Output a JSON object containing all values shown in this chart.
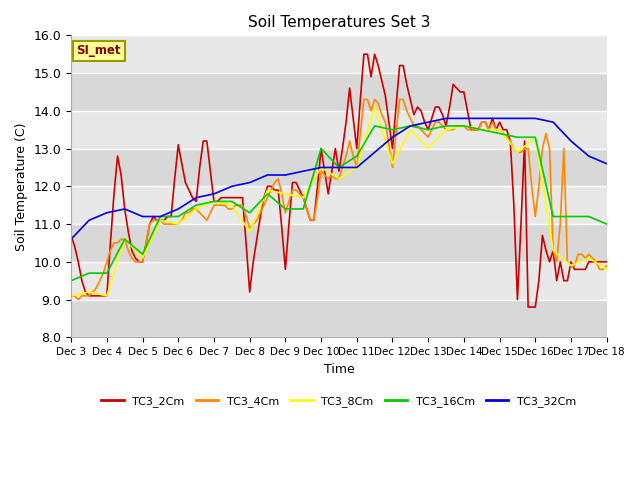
{
  "title": "Soil Temperatures Set 3",
  "xlabel": "Time",
  "ylabel": "Soil Temperature (C)",
  "ylim": [
    8.0,
    16.0
  ],
  "yticks": [
    8.0,
    9.0,
    10.0,
    11.0,
    12.0,
    13.0,
    14.0,
    15.0,
    16.0
  ],
  "xtick_labels": [
    "Dec 3",
    "Dec 4",
    "Dec 5",
    "Dec 6",
    "Dec 7",
    "Dec 8",
    "Dec 9",
    "Dec 10",
    "Dec 11",
    "Dec 12",
    "Dec 13",
    "Dec 14",
    "Dec 15",
    "Dec 16",
    "Dec 17",
    "Dec 18"
  ],
  "watermark": "SI_met",
  "series": {
    "TC3_2Cm": {
      "color": "#cc0000",
      "x": [
        0,
        0.1,
        0.2,
        0.3,
        0.4,
        0.5,
        0.6,
        0.7,
        0.8,
        0.9,
        1.0,
        1.1,
        1.2,
        1.3,
        1.4,
        1.5,
        1.6,
        1.7,
        1.8,
        1.9,
        2.0,
        2.1,
        2.2,
        2.3,
        2.4,
        2.5,
        2.6,
        2.7,
        2.8,
        2.9,
        3.0,
        3.1,
        3.2,
        3.3,
        3.4,
        3.5,
        3.6,
        3.7,
        3.8,
        3.9,
        4.0,
        4.1,
        4.2,
        4.3,
        4.4,
        4.5,
        4.6,
        4.7,
        4.8,
        4.9,
        5.0,
        5.1,
        5.2,
        5.3,
        5.4,
        5.5,
        5.6,
        5.7,
        5.8,
        5.9,
        6.0,
        6.1,
        6.2,
        6.3,
        6.4,
        6.5,
        6.6,
        6.7,
        6.8,
        6.9,
        7.0,
        7.1,
        7.2,
        7.3,
        7.4,
        7.5,
        7.6,
        7.7,
        7.8,
        7.9,
        8.0,
        8.1,
        8.2,
        8.3,
        8.4,
        8.5,
        8.6,
        8.7,
        8.8,
        8.9,
        9.0,
        9.1,
        9.2,
        9.3,
        9.4,
        9.5,
        9.6,
        9.7,
        9.8,
        9.9,
        10.0,
        10.1,
        10.2,
        10.3,
        10.4,
        10.5,
        10.6,
        10.7,
        10.8,
        10.9,
        11.0,
        11.1,
        11.2,
        11.3,
        11.4,
        11.5,
        11.6,
        11.7,
        11.8,
        11.9,
        12.0,
        12.1,
        12.2,
        12.3,
        12.4,
        12.5,
        12.6,
        12.7,
        12.8,
        12.9,
        13.0,
        13.1,
        13.2,
        13.3,
        13.4,
        13.5,
        13.6,
        13.7,
        13.8,
        13.9,
        14.0,
        14.1,
        14.2,
        14.3,
        14.4,
        14.5,
        14.6,
        14.7,
        14.8,
        14.9,
        15.0
      ],
      "y": [
        10.7,
        10.4,
        10.0,
        9.5,
        9.2,
        9.1,
        9.1,
        9.1,
        9.1,
        9.1,
        9.1,
        10.5,
        11.8,
        12.8,
        12.3,
        11.4,
        10.8,
        10.3,
        10.1,
        10.0,
        10.0,
        10.5,
        11.0,
        11.2,
        11.1,
        11.1,
        11.1,
        11.2,
        11.2,
        12.2,
        13.1,
        12.6,
        12.1,
        11.9,
        11.7,
        11.6,
        12.5,
        13.2,
        13.2,
        12.4,
        11.6,
        11.6,
        11.7,
        11.7,
        11.7,
        11.7,
        11.7,
        11.7,
        11.7,
        10.5,
        9.2,
        10.0,
        10.6,
        11.2,
        11.7,
        12.0,
        12.0,
        11.9,
        11.9,
        10.9,
        9.8,
        11.0,
        12.1,
        12.1,
        11.9,
        11.7,
        11.4,
        11.1,
        11.1,
        12.0,
        13.0,
        12.4,
        11.8,
        12.4,
        13.0,
        12.4,
        13.0,
        13.7,
        14.6,
        13.8,
        13.0,
        14.3,
        15.5,
        15.5,
        14.9,
        15.5,
        15.2,
        14.8,
        14.4,
        13.7,
        13.0,
        14.1,
        15.2,
        15.2,
        14.7,
        14.3,
        13.9,
        14.1,
        14.0,
        13.7,
        13.5,
        13.8,
        14.1,
        14.1,
        13.9,
        13.6,
        14.1,
        14.7,
        14.6,
        14.5,
        14.5,
        14.0,
        13.5,
        13.5,
        13.5,
        13.7,
        13.7,
        13.5,
        13.8,
        13.5,
        13.7,
        13.5,
        13.5,
        13.2,
        11.5,
        9.0,
        11.0,
        13.2,
        8.8,
        8.8,
        8.8,
        9.5,
        10.7,
        10.3,
        10.0,
        10.3,
        9.5,
        10.0,
        9.5,
        9.5,
        10.0,
        9.8,
        9.8,
        9.8,
        9.8,
        10.0,
        10.0,
        10.0,
        10.0,
        10.0,
        10.0
      ]
    },
    "TC3_4Cm": {
      "color": "#ff8800",
      "x": [
        0,
        0.1,
        0.2,
        0.3,
        0.4,
        0.5,
        0.6,
        0.7,
        0.8,
        0.9,
        1.0,
        1.1,
        1.2,
        1.3,
        1.4,
        1.5,
        1.6,
        1.7,
        1.8,
        1.9,
        2.0,
        2.1,
        2.2,
        2.3,
        2.4,
        2.5,
        2.6,
        2.7,
        2.8,
        2.9,
        3.0,
        3.1,
        3.2,
        3.3,
        3.4,
        3.5,
        3.6,
        3.7,
        3.8,
        3.9,
        4.0,
        4.1,
        4.2,
        4.3,
        4.4,
        4.5,
        4.6,
        4.7,
        4.8,
        4.9,
        5.0,
        5.1,
        5.2,
        5.3,
        5.4,
        5.5,
        5.6,
        5.7,
        5.8,
        5.9,
        6.0,
        6.1,
        6.2,
        6.3,
        6.4,
        6.5,
        6.6,
        6.7,
        6.8,
        6.9,
        7.0,
        7.1,
        7.2,
        7.3,
        7.4,
        7.5,
        7.6,
        7.7,
        7.8,
        7.9,
        8.0,
        8.1,
        8.2,
        8.3,
        8.4,
        8.5,
        8.6,
        8.7,
        8.8,
        8.9,
        9.0,
        9.1,
        9.2,
        9.3,
        9.4,
        9.5,
        9.6,
        9.7,
        9.8,
        9.9,
        10.0,
        10.1,
        10.2,
        10.3,
        10.4,
        10.5,
        10.6,
        10.7,
        10.8,
        10.9,
        11.0,
        11.1,
        11.2,
        11.3,
        11.4,
        11.5,
        11.6,
        11.7,
        11.8,
        11.9,
        12.0,
        12.1,
        12.2,
        12.3,
        12.4,
        12.5,
        12.6,
        12.7,
        12.8,
        12.9,
        13.0,
        13.1,
        13.2,
        13.3,
        13.4,
        13.5,
        13.6,
        13.7,
        13.8,
        13.9,
        14.0,
        14.1,
        14.2,
        14.3,
        14.4,
        14.5,
        14.6,
        14.7,
        14.8,
        14.9,
        15.0
      ],
      "y": [
        9.1,
        9.1,
        9.0,
        9.1,
        9.1,
        9.1,
        9.2,
        9.3,
        9.5,
        9.7,
        10.0,
        10.3,
        10.5,
        10.5,
        10.6,
        10.6,
        10.3,
        10.1,
        10.0,
        10.0,
        10.0,
        10.5,
        11.0,
        11.1,
        11.1,
        11.1,
        11.0,
        11.0,
        11.0,
        11.0,
        11.0,
        11.1,
        11.3,
        11.3,
        11.4,
        11.4,
        11.3,
        11.2,
        11.1,
        11.3,
        11.5,
        11.5,
        11.5,
        11.5,
        11.4,
        11.4,
        11.5,
        11.5,
        11.5,
        11.2,
        10.9,
        11.0,
        11.1,
        11.3,
        11.5,
        11.7,
        11.9,
        12.1,
        12.2,
        11.8,
        11.3,
        11.6,
        11.9,
        11.9,
        11.8,
        11.7,
        11.4,
        11.1,
        11.1,
        11.7,
        12.4,
        12.3,
        12.2,
        12.3,
        12.2,
        12.2,
        12.5,
        12.8,
        13.2,
        12.8,
        12.5,
        13.4,
        14.3,
        14.3,
        14.0,
        14.3,
        14.2,
        13.9,
        13.7,
        13.1,
        12.5,
        13.4,
        14.3,
        14.3,
        14.0,
        13.8,
        13.6,
        13.6,
        13.5,
        13.4,
        13.3,
        13.5,
        13.7,
        13.7,
        13.6,
        13.5,
        13.5,
        13.5,
        13.6,
        13.6,
        13.6,
        13.5,
        13.5,
        13.5,
        13.5,
        13.7,
        13.7,
        13.5,
        13.7,
        13.5,
        13.5,
        13.4,
        13.3,
        13.2,
        13.0,
        12.9,
        12.9,
        13.0,
        13.0,
        12.0,
        11.2,
        12.0,
        13.0,
        13.4,
        13.0,
        10.3,
        10.0,
        11.0,
        13.0,
        10.0,
        9.9,
        9.9,
        10.2,
        10.2,
        10.1,
        10.2,
        10.1,
        10.0,
        9.8,
        9.8,
        9.9
      ]
    },
    "TC3_8Cm": {
      "color": "#ffff00",
      "x": [
        0,
        0.5,
        1.0,
        1.5,
        2.0,
        2.5,
        3.0,
        3.5,
        4.0,
        4.5,
        5.0,
        5.5,
        6.0,
        6.5,
        7.0,
        7.5,
        8.0,
        8.5,
        9.0,
        9.5,
        10.0,
        10.5,
        11.0,
        11.5,
        12.0,
        12.5,
        13.0,
        13.5,
        14.0,
        14.5,
        15.0
      ],
      "y": [
        9.1,
        9.2,
        9.1,
        10.6,
        10.1,
        11.1,
        11.0,
        11.4,
        11.6,
        11.5,
        10.8,
        11.9,
        11.8,
        11.7,
        12.5,
        12.2,
        12.5,
        14.1,
        12.6,
        13.5,
        13.0,
        13.5,
        13.6,
        13.5,
        13.5,
        12.9,
        13.3,
        10.3,
        9.9,
        10.1,
        9.8
      ]
    },
    "TC3_16Cm": {
      "color": "#00cc00",
      "x": [
        0,
        0.5,
        1.0,
        1.5,
        2.0,
        2.5,
        3.0,
        3.5,
        4.0,
        4.5,
        5.0,
        5.5,
        6.0,
        6.5,
        7.0,
        7.5,
        8.0,
        8.5,
        9.0,
        9.5,
        10.0,
        10.5,
        11.0,
        11.5,
        12.0,
        12.5,
        13.0,
        13.5,
        14.0,
        14.5,
        15.0
      ],
      "y": [
        9.5,
        9.7,
        9.7,
        10.6,
        10.2,
        11.2,
        11.2,
        11.5,
        11.6,
        11.6,
        11.3,
        11.8,
        11.4,
        11.4,
        13.0,
        12.5,
        12.8,
        13.6,
        13.5,
        13.6,
        13.5,
        13.6,
        13.6,
        13.5,
        13.4,
        13.3,
        13.3,
        11.2,
        11.2,
        11.2,
        11.0
      ]
    },
    "TC3_32Cm": {
      "color": "#0000ee",
      "x": [
        0,
        0.5,
        1.0,
        1.5,
        2.0,
        2.5,
        3.0,
        3.5,
        4.0,
        4.5,
        5.0,
        5.5,
        6.0,
        6.5,
        7.0,
        7.5,
        8.0,
        8.5,
        9.0,
        9.5,
        10.0,
        10.5,
        11.0,
        11.5,
        12.0,
        12.5,
        13.0,
        13.5,
        14.0,
        14.5,
        15.0
      ],
      "y": [
        10.6,
        11.1,
        11.3,
        11.4,
        11.2,
        11.2,
        11.4,
        11.7,
        11.8,
        12.0,
        12.1,
        12.3,
        12.3,
        12.4,
        12.5,
        12.5,
        12.5,
        12.9,
        13.3,
        13.6,
        13.7,
        13.8,
        13.8,
        13.8,
        13.8,
        13.8,
        13.8,
        13.7,
        13.2,
        12.8,
        12.6
      ]
    }
  },
  "bg_color": "#ffffff",
  "plot_bg_light": "#e8e8e8",
  "plot_bg_dark": "#d8d8d8",
  "grid_color": "#ffffff",
  "watermark_bg": "#ffff99",
  "watermark_border": "#999900",
  "watermark_text_color": "#880000",
  "legend_colors": [
    "#cc0000",
    "#ff8800",
    "#ffff00",
    "#00cc00",
    "#0000ee"
  ],
  "legend_labels": [
    "TC3_2Cm",
    "TC3_4Cm",
    "TC3_8Cm",
    "TC3_16Cm",
    "TC3_32Cm"
  ]
}
